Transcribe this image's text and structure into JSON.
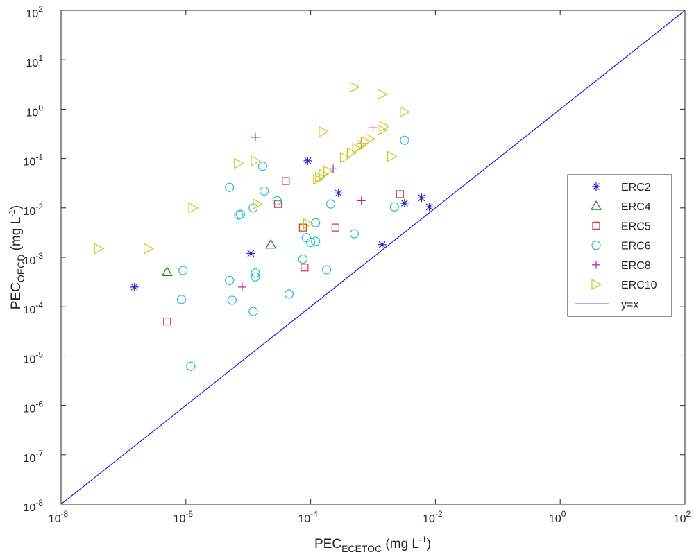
{
  "chart_data": {
    "type": "scatter",
    "x_scale": "log",
    "y_scale": "log",
    "xlim": [
      1e-08,
      100
    ],
    "ylim": [
      1e-08,
      100
    ],
    "xlabel": {
      "main": "PEC",
      "sub": "ECETOC",
      "unit_pre": " (mg L",
      "unit_sup": "-1",
      "unit_post": ")"
    },
    "ylabel": {
      "main": "PEC",
      "sub": "OECD",
      "unit_pre": " (mg L",
      "unit_sup": "-1",
      "unit_post": ")"
    },
    "x_ticks": [
      {
        "value": 1e-08,
        "base": "10",
        "exp": "-8"
      },
      {
        "value": 1e-06,
        "base": "10",
        "exp": "-6"
      },
      {
        "value": 0.0001,
        "base": "10",
        "exp": "-4"
      },
      {
        "value": 0.01,
        "base": "10",
        "exp": "-2"
      },
      {
        "value": 1,
        "base": "10",
        "exp": "0"
      },
      {
        "value": 100,
        "base": "10",
        "exp": "2"
      }
    ],
    "y_ticks": [
      {
        "value": 1e-08,
        "base": "10",
        "exp": "-8"
      },
      {
        "value": 1e-07,
        "base": "10",
        "exp": "-7"
      },
      {
        "value": 1e-06,
        "base": "10",
        "exp": "-6"
      },
      {
        "value": 1e-05,
        "base": "10",
        "exp": "-5"
      },
      {
        "value": 0.0001,
        "base": "10",
        "exp": "-4"
      },
      {
        "value": 0.001,
        "base": "10",
        "exp": "-3"
      },
      {
        "value": 0.01,
        "base": "10",
        "exp": "-2"
      },
      {
        "value": 0.1,
        "base": "10",
        "exp": "-1"
      },
      {
        "value": 1,
        "base": "10",
        "exp": "0"
      },
      {
        "value": 10,
        "base": "10",
        "exp": "1"
      },
      {
        "value": 100,
        "base": "10",
        "exp": "2"
      }
    ],
    "legend_position": "right",
    "series": [
      {
        "name": "ERC2",
        "marker": "asterisk",
        "color": "#1f1fd0",
        "points": [
          [
            1.5e-07,
            0.00025
          ],
          [
            1.1e-05,
            0.0012
          ],
          [
            9e-05,
            0.09
          ],
          [
            0.00028,
            0.02
          ],
          [
            0.0014,
            0.0018
          ],
          [
            0.0032,
            0.0125
          ],
          [
            0.006,
            0.016
          ],
          [
            0.008,
            0.0105
          ]
        ]
      },
      {
        "name": "ERC4",
        "marker": "triangle",
        "color": "#208020",
        "points": [
          [
            5e-07,
            0.0005
          ],
          [
            2.3e-05,
            0.0018
          ]
        ]
      },
      {
        "name": "ERC5",
        "marker": "square",
        "color": "#e03030",
        "points": [
          [
            5e-07,
            5e-05
          ],
          [
            4e-05,
            0.035
          ],
          [
            3e-05,
            0.012
          ],
          [
            7.5e-05,
            0.004
          ],
          [
            8e-05,
            0.00062
          ],
          [
            0.00025,
            0.004
          ],
          [
            0.0027,
            0.019
          ]
        ]
      },
      {
        "name": "ERC6",
        "marker": "circle",
        "color": "#20c0c0",
        "points": [
          [
            1.2e-06,
            6.2e-06
          ],
          [
            9e-07,
            0.00054
          ],
          [
            8.5e-07,
            0.00014
          ],
          [
            5e-06,
            0.00034
          ],
          [
            5.5e-06,
            0.000135
          ],
          [
            5e-06,
            0.026
          ],
          [
            7e-06,
            0.0072
          ],
          [
            7.5e-06,
            0.0074
          ],
          [
            1.2e-05,
            0.01
          ],
          [
            1.3e-05,
            0.00048
          ],
          [
            1.3e-05,
            0.0004
          ],
          [
            1.2e-05,
            8e-05
          ],
          [
            1.7e-05,
            0.07
          ],
          [
            1.8e-05,
            0.022
          ],
          [
            2.9e-05,
            0.014
          ],
          [
            4.5e-05,
            0.00018
          ],
          [
            7.5e-05,
            0.00092
          ],
          [
            8.5e-05,
            0.0025
          ],
          [
            0.0001,
            0.002
          ],
          [
            0.00012,
            0.005
          ],
          [
            0.00012,
            0.0021
          ],
          [
            0.00018,
            0.00056
          ],
          [
            0.00021,
            0.012
          ],
          [
            0.0005,
            0.003
          ],
          [
            0.0022,
            0.0105
          ],
          [
            0.0032,
            0.235
          ]
        ]
      },
      {
        "name": "ERC8",
        "marker": "plus",
        "color": "#b020b0",
        "points": [
          [
            1.3e-05,
            0.27
          ],
          [
            8e-06,
            0.00025
          ],
          [
            0.00023,
            0.062
          ],
          [
            0.00065,
            0.014
          ],
          [
            0.00065,
            0.2
          ],
          [
            0.001,
            0.42
          ]
        ]
      },
      {
        "name": "ERC10",
        "marker": "triangle-right",
        "color": "#c8c820",
        "points": [
          [
            4e-08,
            0.0015
          ],
          [
            2.5e-07,
            0.0015
          ],
          [
            1.3e-06,
            0.01
          ],
          [
            7e-06,
            0.08
          ],
          [
            1.3e-05,
            0.09
          ],
          [
            1.4e-05,
            0.012
          ],
          [
            9e-05,
            0.0048
          ],
          [
            0.00013,
            0.038
          ],
          [
            0.00014,
            0.042
          ],
          [
            0.00016,
            0.35
          ],
          [
            0.00016,
            0.048
          ],
          [
            0.00019,
            0.056
          ],
          [
            0.00035,
            0.105
          ],
          [
            0.00045,
            0.13
          ],
          [
            0.0005,
            2.8
          ],
          [
            0.00055,
            0.16
          ],
          [
            0.00065,
            0.185
          ],
          [
            0.00075,
            0.22
          ],
          [
            0.0009,
            0.25
          ],
          [
            0.0014,
            2
          ],
          [
            0.0014,
            0.38
          ],
          [
            0.0015,
            0.45
          ],
          [
            0.002,
            0.11
          ],
          [
            0.0032,
            0.88
          ]
        ]
      },
      {
        "name": "y=x",
        "marker": "line",
        "color": "#2020e0",
        "points": [
          [
            1e-08,
            1e-08
          ],
          [
            100,
            100
          ]
        ]
      }
    ]
  }
}
